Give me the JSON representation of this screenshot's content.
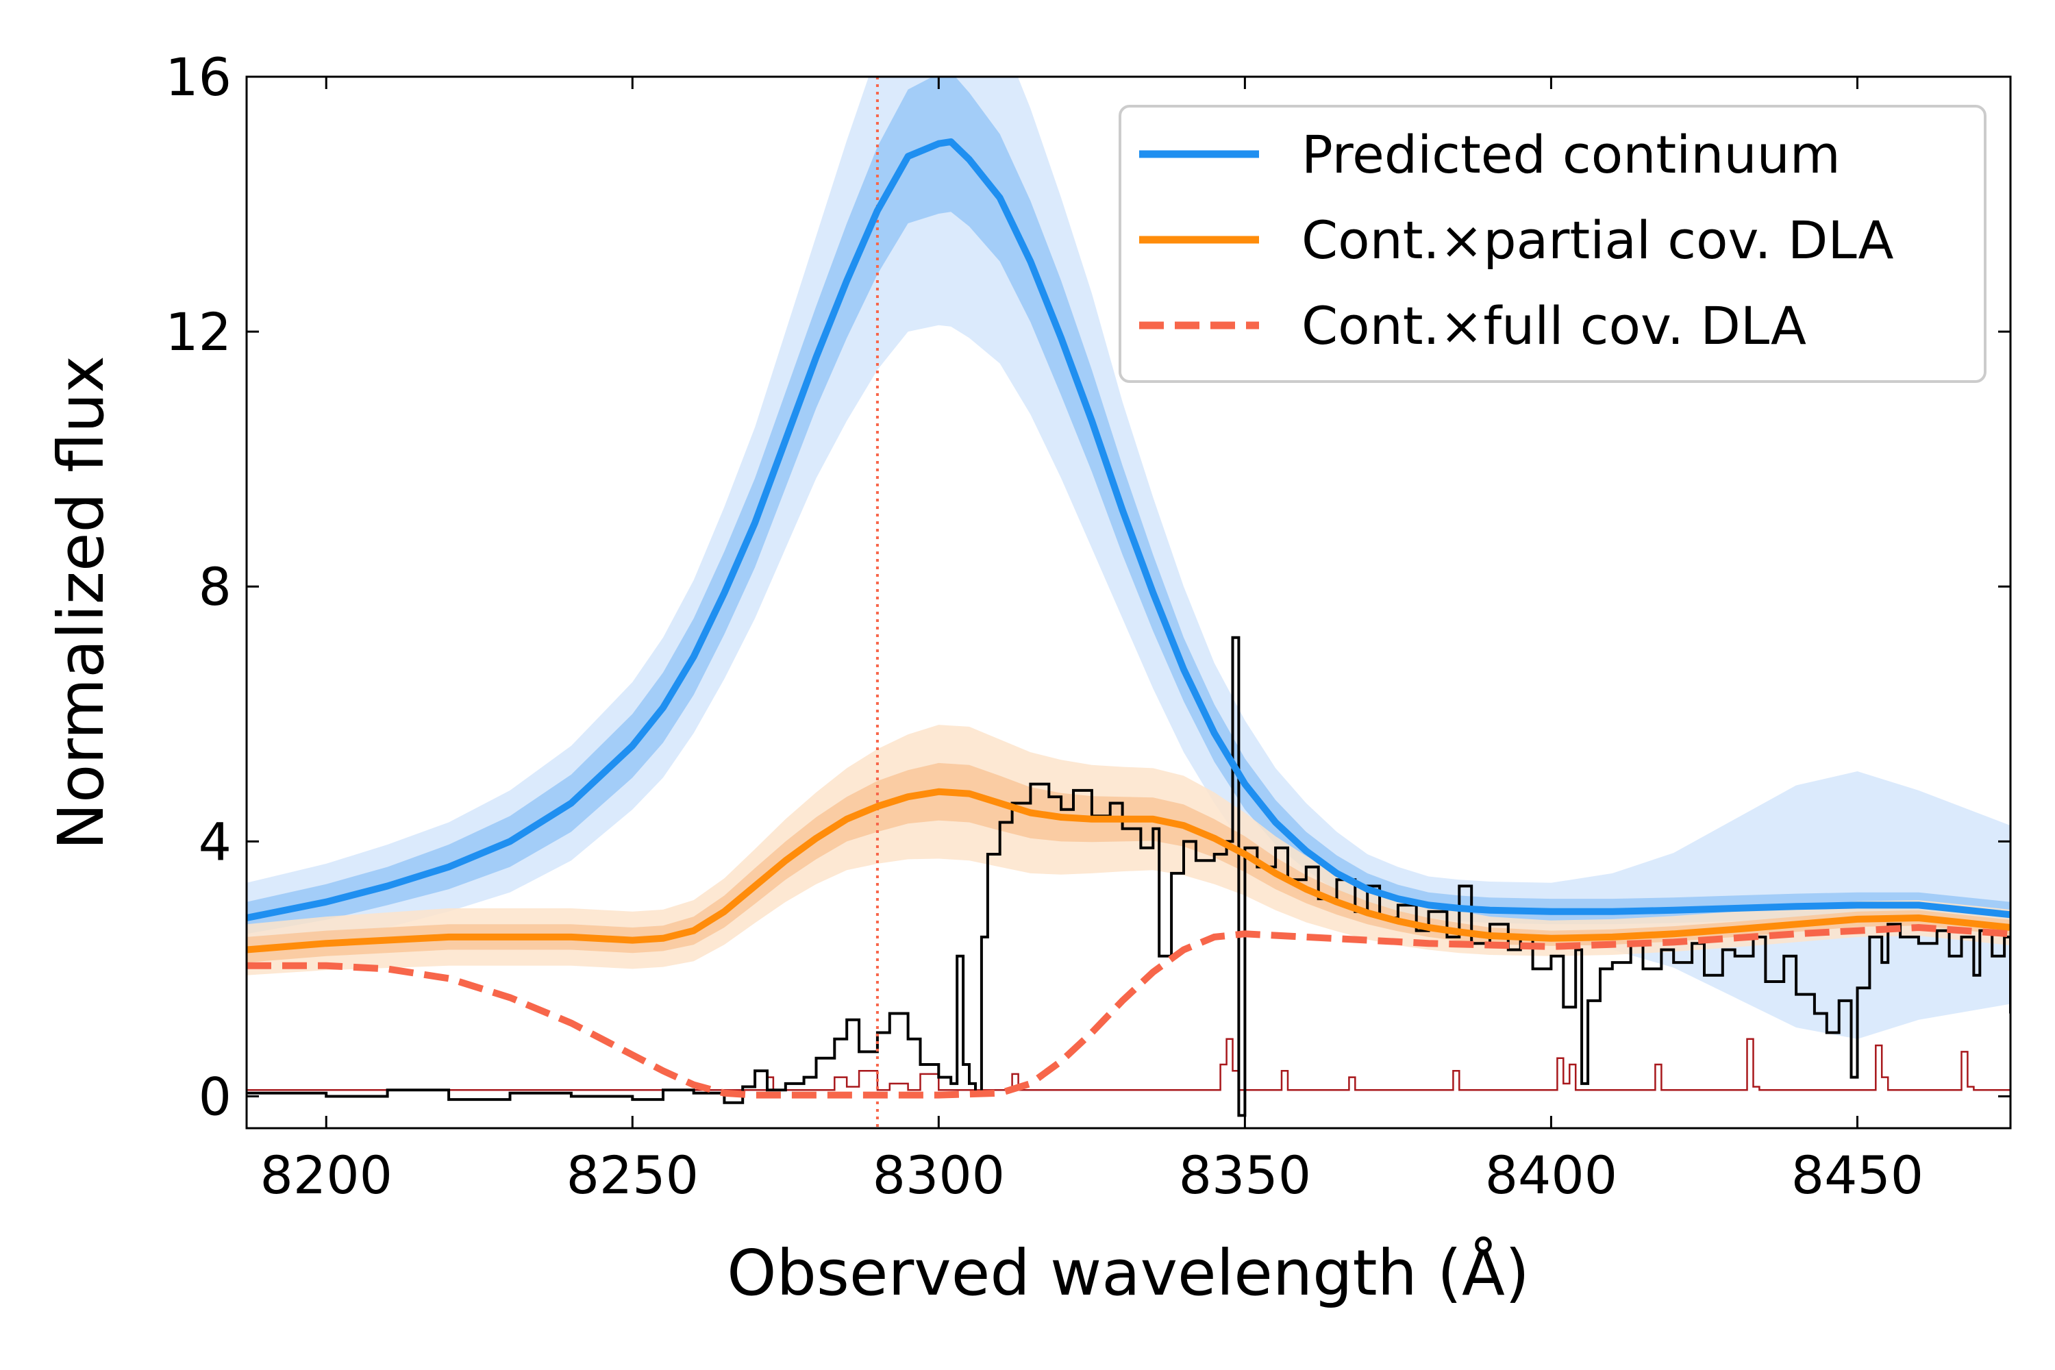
{
  "chart_data": {
    "type": "line",
    "title": "",
    "xlabel": "Observed wavelength (Å)",
    "ylabel": "Normalized flux",
    "xlim": [
      8187,
      8475
    ],
    "ylim": [
      -0.5,
      16
    ],
    "xticks": [
      8200,
      8250,
      8300,
      8350,
      8400,
      8450
    ],
    "yticks": [
      0,
      4,
      8,
      12,
      16
    ],
    "tick_direction": "in",
    "grid": false,
    "legend_position": "top-right",
    "colors": {
      "continuum": "#1f8ff0",
      "continuum_band_inner": "#a3cdf8",
      "continuum_band_outer": "#dbeafc",
      "partial": "#ff8c0a",
      "partial_band_inner": "#f9c79a",
      "partial_band_outer": "#fde4cb",
      "full": "#f7664a",
      "observed": "#000000",
      "error": "#a8181c",
      "reference_line": "#f7664a"
    },
    "reference_line_x": 8290,
    "series": [
      {
        "name": "Predicted continuum",
        "style": "solid",
        "x": [
          8187,
          8200,
          8210,
          8220,
          8230,
          8240,
          8250,
          8255,
          8260,
          8265,
          8270,
          8275,
          8280,
          8285,
          8290,
          8295,
          8300,
          8302,
          8305,
          8310,
          8315,
          8320,
          8325,
          8330,
          8335,
          8340,
          8345,
          8350,
          8355,
          8360,
          8365,
          8370,
          8375,
          8380,
          8385,
          8390,
          8400,
          8410,
          8420,
          8430,
          8440,
          8450,
          8460,
          8475
        ],
        "y": [
          2.8,
          3.05,
          3.3,
          3.6,
          4.0,
          4.6,
          5.5,
          6.1,
          6.9,
          7.9,
          9.0,
          10.3,
          11.6,
          12.8,
          13.9,
          14.75,
          14.95,
          14.98,
          14.7,
          14.1,
          13.1,
          11.9,
          10.6,
          9.2,
          7.9,
          6.7,
          5.7,
          4.9,
          4.3,
          3.85,
          3.5,
          3.25,
          3.1,
          3.0,
          2.95,
          2.92,
          2.9,
          2.9,
          2.92,
          2.95,
          2.98,
          3.0,
          3.0,
          2.85
        ],
        "band_inner": [
          0.25,
          0.28,
          0.3,
          0.35,
          0.4,
          0.45,
          0.5,
          0.55,
          0.6,
          0.65,
          0.7,
          0.75,
          0.8,
          0.9,
          1.0,
          1.05,
          1.1,
          1.1,
          1.05,
          1.0,
          0.95,
          0.9,
          0.8,
          0.7,
          0.6,
          0.5,
          0.45,
          0.4,
          0.35,
          0.3,
          0.28,
          0.25,
          0.22,
          0.2,
          0.2,
          0.2,
          0.2,
          0.2,
          0.2,
          0.2,
          0.2,
          0.2,
          0.2,
          0.2
        ],
        "band_outer": [
          0.55,
          0.6,
          0.65,
          0.7,
          0.8,
          0.9,
          1.0,
          1.1,
          1.2,
          1.35,
          1.5,
          1.7,
          1.9,
          2.2,
          2.5,
          2.75,
          2.85,
          2.9,
          2.8,
          2.6,
          2.4,
          2.2,
          2.0,
          1.7,
          1.5,
          1.3,
          1.1,
          1.0,
          0.85,
          0.75,
          0.65,
          0.55,
          0.5,
          0.45,
          0.45,
          0.45,
          0.45,
          0.6,
          0.9,
          1.4,
          1.9,
          2.1,
          1.8,
          1.4
        ]
      },
      {
        "name": "Cont.×partial cov. DLA",
        "style": "solid",
        "x": [
          8187,
          8200,
          8220,
          8240,
          8250,
          8255,
          8260,
          8265,
          8270,
          8275,
          8280,
          8285,
          8290,
          8295,
          8300,
          8305,
          8310,
          8315,
          8320,
          8325,
          8330,
          8335,
          8340,
          8345,
          8350,
          8355,
          8360,
          8365,
          8370,
          8375,
          8380,
          8385,
          8390,
          8400,
          8410,
          8420,
          8430,
          8440,
          8450,
          8460,
          8475
        ],
        "y": [
          2.3,
          2.4,
          2.5,
          2.5,
          2.45,
          2.48,
          2.6,
          2.9,
          3.3,
          3.7,
          4.05,
          4.35,
          4.55,
          4.7,
          4.78,
          4.75,
          4.6,
          4.45,
          4.38,
          4.35,
          4.35,
          4.35,
          4.25,
          4.05,
          3.8,
          3.5,
          3.25,
          3.05,
          2.88,
          2.75,
          2.65,
          2.58,
          2.52,
          2.48,
          2.5,
          2.55,
          2.62,
          2.7,
          2.78,
          2.8,
          2.65
        ],
        "band_inner": [
          0.2,
          0.2,
          0.2,
          0.2,
          0.2,
          0.2,
          0.22,
          0.25,
          0.28,
          0.3,
          0.33,
          0.35,
          0.4,
          0.42,
          0.45,
          0.45,
          0.43,
          0.4,
          0.38,
          0.36,
          0.35,
          0.34,
          0.33,
          0.3,
          0.28,
          0.25,
          0.22,
          0.2,
          0.18,
          0.16,
          0.15,
          0.14,
          0.13,
          0.12,
          0.12,
          0.12,
          0.12,
          0.12,
          0.12,
          0.12,
          0.12
        ],
        "band_outer": [
          0.4,
          0.42,
          0.45,
          0.45,
          0.45,
          0.45,
          0.48,
          0.52,
          0.58,
          0.65,
          0.72,
          0.8,
          0.9,
          0.98,
          1.05,
          1.05,
          1.0,
          0.95,
          0.9,
          0.85,
          0.82,
          0.8,
          0.78,
          0.72,
          0.65,
          0.58,
          0.52,
          0.46,
          0.42,
          0.38,
          0.35,
          0.33,
          0.3,
          0.28,
          0.28,
          0.28,
          0.28,
          0.28,
          0.28,
          0.28,
          0.28
        ]
      },
      {
        "name": "Cont.×full cov. DLA",
        "style": "dashed",
        "x": [
          8187,
          8200,
          8210,
          8220,
          8230,
          8240,
          8250,
          8255,
          8260,
          8265,
          8270,
          8280,
          8290,
          8300,
          8310,
          8315,
          8320,
          8325,
          8330,
          8335,
          8340,
          8345,
          8350,
          8360,
          8380,
          8400,
          8420,
          8440,
          8460,
          8475
        ],
        "y": [
          2.05,
          2.05,
          2.0,
          1.85,
          1.55,
          1.15,
          0.65,
          0.4,
          0.18,
          0.05,
          0.02,
          0.02,
          0.02,
          0.02,
          0.05,
          0.2,
          0.55,
          1.0,
          1.5,
          1.95,
          2.3,
          2.5,
          2.55,
          2.5,
          2.4,
          2.35,
          2.42,
          2.55,
          2.65,
          2.55
        ]
      },
      {
        "name": "",
        "role": "observed-spectrum",
        "style": "solid",
        "x": [
          8187,
          8200,
          8210,
          8220,
          8230,
          8240,
          8250,
          8255,
          8260,
          8265,
          8268,
          8270,
          8272,
          8275,
          8278,
          8280,
          8283,
          8285,
          8287,
          8290,
          8292,
          8295,
          8297,
          8300,
          8302,
          8303,
          8304,
          8305,
          8306,
          8307,
          8308,
          8310,
          8312,
          8315,
          8318,
          8320,
          8322,
          8325,
          8328,
          8330,
          8333,
          8335,
          8336,
          8338,
          8340,
          8342,
          8345,
          8347,
          8348,
          8349,
          8350,
          8352,
          8355,
          8357,
          8360,
          8362,
          8365,
          8368,
          8370,
          8372,
          8375,
          8378,
          8380,
          8383,
          8385,
          8387,
          8390,
          8393,
          8395,
          8397,
          8400,
          8402,
          8404,
          8405,
          8406,
          8408,
          8410,
          8413,
          8415,
          8418,
          8420,
          8423,
          8425,
          8428,
          8430,
          8433,
          8435,
          8438,
          8440,
          8443,
          8445,
          8447,
          8449,
          8450,
          8452,
          8454,
          8455,
          8457,
          8460,
          8463,
          8465,
          8467,
          8469,
          8470,
          8472,
          8474,
          8475
        ],
        "y": [
          0.05,
          0.0,
          0.1,
          -0.05,
          0.05,
          0.0,
          -0.05,
          0.1,
          0.05,
          -0.1,
          0.15,
          0.4,
          0.1,
          0.2,
          0.3,
          0.6,
          0.9,
          1.2,
          0.7,
          1.0,
          1.3,
          0.9,
          0.5,
          0.3,
          0.2,
          2.2,
          0.5,
          0.2,
          0.05,
          2.5,
          3.8,
          4.3,
          4.6,
          4.9,
          4.7,
          4.5,
          4.8,
          4.4,
          4.6,
          4.2,
          3.9,
          4.2,
          2.2,
          3.5,
          4.0,
          3.7,
          3.8,
          4.0,
          7.2,
          -0.3,
          3.9,
          3.6,
          3.9,
          3.4,
          3.6,
          3.1,
          3.4,
          2.9,
          3.3,
          2.8,
          3.0,
          2.6,
          2.9,
          2.5,
          3.3,
          2.4,
          2.7,
          2.3,
          2.5,
          2.0,
          2.2,
          1.4,
          2.3,
          0.2,
          1.5,
          2.0,
          2.1,
          2.4,
          2.0,
          2.3,
          2.1,
          2.4,
          1.9,
          2.3,
          2.2,
          2.5,
          1.8,
          2.2,
          1.6,
          1.3,
          1.0,
          1.5,
          0.3,
          1.7,
          2.5,
          2.1,
          2.7,
          2.5,
          2.4,
          2.6,
          2.2,
          2.5,
          1.9,
          2.6,
          2.2,
          2.5,
          1.3
        ]
      },
      {
        "name": "",
        "role": "error-spectrum",
        "style": "solid",
        "x": [
          8187,
          8270,
          8272,
          8273,
          8280,
          8283,
          8285,
          8287,
          8290,
          8292,
          8295,
          8297,
          8300,
          8310,
          8312,
          8313,
          8314,
          8345,
          8346,
          8347,
          8348,
          8349,
          8355,
          8356,
          8357,
          8358,
          8366,
          8367,
          8368,
          8383,
          8384,
          8385,
          8386,
          8400,
          8401,
          8402,
          8403,
          8404,
          8405,
          8416,
          8417,
          8418,
          8431,
          8432,
          8433,
          8434,
          8452,
          8453,
          8454,
          8455,
          8466,
          8467,
          8468,
          8469,
          8475
        ],
        "y": [
          0.1,
          0.1,
          0.3,
          0.1,
          0.1,
          0.3,
          0.15,
          0.4,
          0.1,
          0.2,
          0.1,
          0.35,
          0.1,
          0.1,
          0.35,
          0.1,
          0.1,
          0.1,
          0.5,
          0.9,
          0.4,
          0.1,
          0.1,
          0.4,
          0.1,
          0.1,
          0.1,
          0.3,
          0.1,
          0.1,
          0.4,
          0.1,
          0.1,
          0.1,
          0.6,
          0.2,
          0.5,
          0.1,
          0.1,
          0.1,
          0.5,
          0.1,
          0.1,
          0.9,
          0.15,
          0.1,
          0.1,
          0.8,
          0.3,
          0.1,
          0.1,
          0.7,
          0.15,
          0.1,
          0.1
        ]
      }
    ]
  }
}
